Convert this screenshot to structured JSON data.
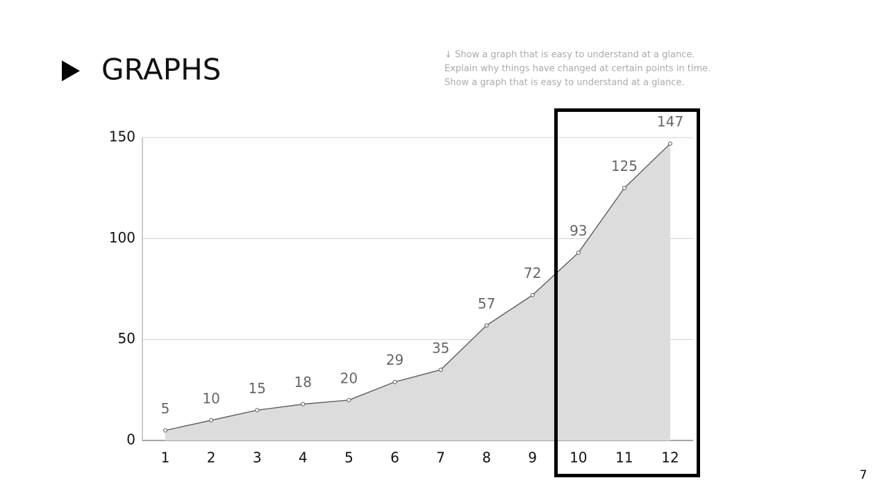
{
  "title": "GRAPHS",
  "notes": [
    "↓ Show a graph that is easy to understand at a glance.",
    "Explain why things have changed at certain points in time.",
    "Show a graph that is easy to understand at a glance."
  ],
  "page_number": "7",
  "chart_data": {
    "type": "area",
    "categories": [
      "1",
      "2",
      "3",
      "4",
      "5",
      "6",
      "7",
      "8",
      "9",
      "10",
      "11",
      "12"
    ],
    "values": [
      5,
      10,
      15,
      18,
      20,
      29,
      35,
      57,
      72,
      93,
      125,
      147
    ],
    "color": "#dcdcdc",
    "line_color": "#555555",
    "ylim": [
      0,
      150
    ],
    "yticks": [
      0,
      50,
      100,
      150
    ],
    "grid": true
  }
}
